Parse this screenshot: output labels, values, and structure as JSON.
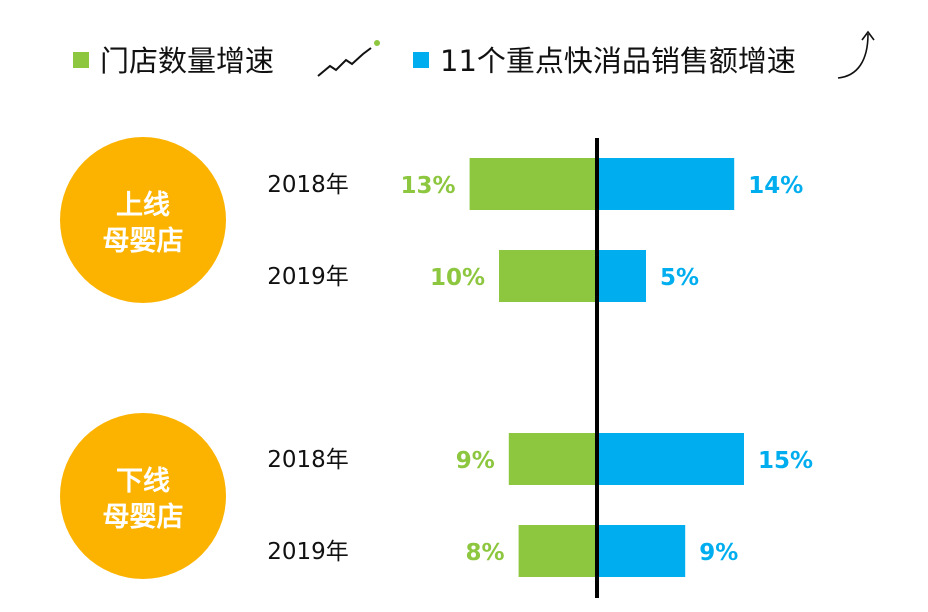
{
  "colors": {
    "green": "#8DC63F",
    "blue": "#00AEEF",
    "orange": "#FBB300",
    "axis": "#000000"
  },
  "legend": {
    "item1": {
      "label": "门店数量增速",
      "icon": "trending-line-icon"
    },
    "item2": {
      "label": "11个重点快消品销售额增速",
      "icon": "curved-up-arrow-icon"
    }
  },
  "chart_data": {
    "type": "bar",
    "orientation": "horizontal-diverging",
    "series": [
      {
        "name": "门店数量增速",
        "color": "#8DC63F",
        "values": [
          13,
          10,
          9,
          8
        ]
      },
      {
        "name": "11个重点快消品销售额增速",
        "color": "#00AEEF",
        "values": [
          14,
          5,
          15,
          9
        ]
      }
    ],
    "groups": [
      {
        "label_line1": "上线",
        "label_line2": "母婴店",
        "categories": [
          "2018年",
          "2019年"
        ]
      },
      {
        "label_line1": "下线",
        "label_line2": "母婴店",
        "categories": [
          "2018年",
          "2019年"
        ]
      }
    ],
    "value_labels": {
      "green": [
        "13%",
        "10%",
        "9%",
        "8%"
      ],
      "blue": [
        "14%",
        "5%",
        "15%",
        "9%"
      ]
    },
    "unit": "%"
  }
}
